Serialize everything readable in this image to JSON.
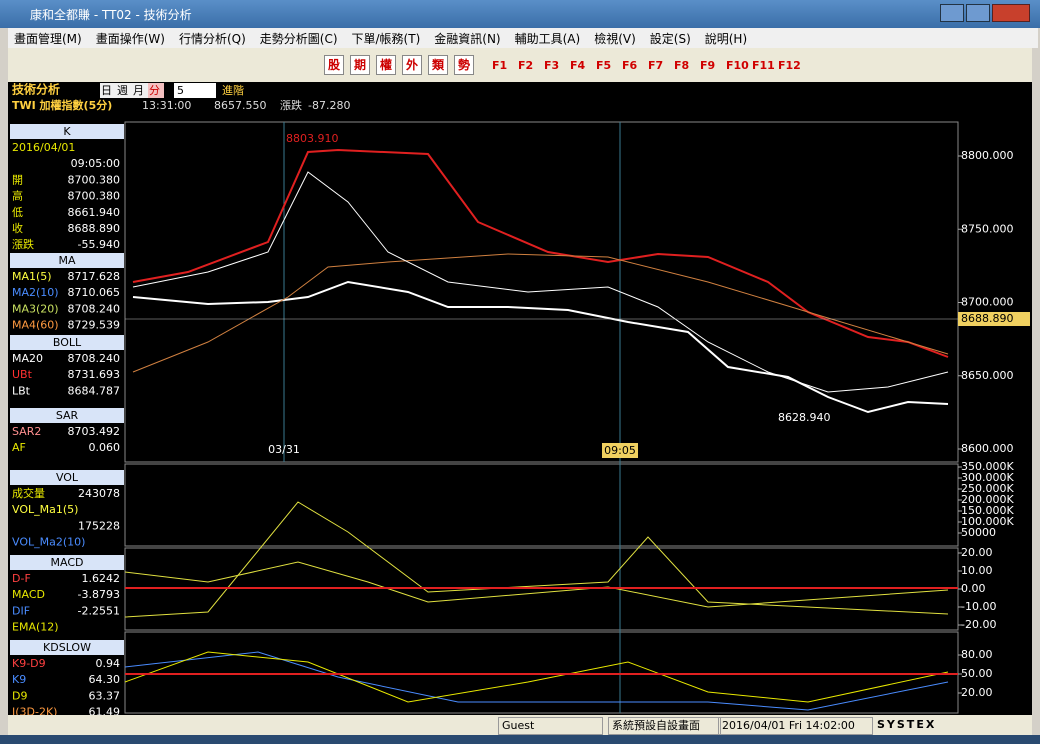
{
  "window": {
    "title": "康和全都賺 - TT02 - 技術分析"
  },
  "menu": [
    "畫面管理(M)",
    "畫面操作(W)",
    "行情分析(Q)",
    "走勢分析圖(C)",
    "下單/帳務(T)",
    "金融資訊(N)",
    "輔助工具(A)",
    "檢視(V)",
    "設定(S)",
    "說明(H)"
  ],
  "toolbar": {
    "buttons": [
      "股",
      "期",
      "權",
      "外",
      "類",
      "勢"
    ],
    "fkeys": [
      "F1",
      "F2",
      "F3",
      "F4",
      "F5",
      "F6",
      "F7",
      "F8",
      "F9",
      "F10",
      "F11",
      "F12"
    ]
  },
  "header": {
    "title": "技術分析",
    "periods": [
      "日",
      "週",
      "月",
      "分"
    ],
    "interval": "5",
    "advanced": "進階",
    "symbol": "TWI  加權指數(5分)",
    "time": "13:31:00",
    "price": "8657.550",
    "change_label": "漲跌",
    "change": "-87.280"
  },
  "panels": [
    {
      "title": "K",
      "rows": [
        {
          "label": "2016/04/01",
          "color": "#e8e800"
        },
        {
          "value": "09:05:00"
        },
        {
          "label": "開",
          "value": "8700.380"
        },
        {
          "label": "高",
          "value": "8700.380"
        },
        {
          "label": "低",
          "value": "8661.940"
        },
        {
          "label": "收",
          "value": "8688.890"
        },
        {
          "label": "漲跌",
          "value": "-55.940"
        }
      ]
    },
    {
      "title": "MA",
      "rows": [
        {
          "label": "MA1(5)",
          "value": "8717.628",
          "color": "#ffff40"
        },
        {
          "label": "MA2(10)",
          "value": "8710.065",
          "color": "#4a8cff"
        },
        {
          "label": "MA3(20)",
          "value": "8708.240",
          "color": "#c8e060"
        },
        {
          "label": "MA4(60)",
          "value": "8729.539",
          "color": "#ff9a40"
        }
      ]
    },
    {
      "title": "BOLL",
      "rows": [
        {
          "label": "MA20",
          "value": "8708.240",
          "color": "#ffffff"
        },
        {
          "label": "UBt",
          "value": "8731.693",
          "color": "#ff3030"
        },
        {
          "label": "LBt",
          "value": "8684.787",
          "color": "#ffffff"
        }
      ]
    },
    {
      "title": "SAR",
      "rows": [
        {
          "label": "SAR2",
          "value": "8703.492",
          "color": "#ff9090"
        },
        {
          "label": "AF",
          "value": "0.060",
          "color": "#e8e800"
        }
      ]
    },
    {
      "title": "VOL",
      "rows": [
        {
          "label": "成交量",
          "value": "243078",
          "color": "#e8e800"
        },
        {
          "label": "VOL_Ma1(5)",
          "color": "#ffff40"
        },
        {
          "value": "175228"
        },
        {
          "label": "VOL_Ma2(10)",
          "color": "#4a8cff"
        }
      ]
    },
    {
      "title": "MACD",
      "rows": [
        {
          "label": "D-F",
          "value": "1.6242",
          "color": "#ff4040"
        },
        {
          "label": "MACD",
          "value": "-3.8793",
          "color": "#e8e800"
        },
        {
          "label": "DIF",
          "value": "-2.2551",
          "color": "#4a8cff"
        },
        {
          "label": "EMA(12)",
          "color": "#e8e800"
        }
      ]
    },
    {
      "title": "KDSLOW",
      "rows": [
        {
          "label": "K9-D9",
          "value": "0.94",
          "color": "#ff4040"
        },
        {
          "label": "K9",
          "value": "64.30",
          "color": "#4a8cff"
        },
        {
          "label": "D9",
          "value": "63.37",
          "color": "#e8e800"
        },
        {
          "label": "J(3D-2K)",
          "value": "61.49",
          "color": "#ff9a40"
        }
      ]
    }
  ],
  "price_axis": {
    "ticks": [
      "8800.000",
      "8750.000",
      "8700.000",
      "8650.000",
      "8600.000"
    ],
    "current": "8688.890",
    "high_label": "8803.910",
    "low_label": "8628.940",
    "x_labels": [
      "03/31",
      "09:05"
    ]
  },
  "vol_axis": [
    "350.000K",
    "300.000K",
    "250.000K",
    "200.000K",
    "150.000K",
    "100.000K",
    "50000"
  ],
  "macd_axis": [
    "20.00",
    "10.00",
    "0.00",
    "-10.00",
    "-20.00"
  ],
  "kd_axis": [
    "80.00",
    "50.00",
    "20.00"
  ],
  "status": {
    "user": "Guest",
    "layout": "系統預設自設畫面",
    "datetime": "2016/04/01 Fri 14:02:00",
    "brand": "SYSTEX"
  }
}
